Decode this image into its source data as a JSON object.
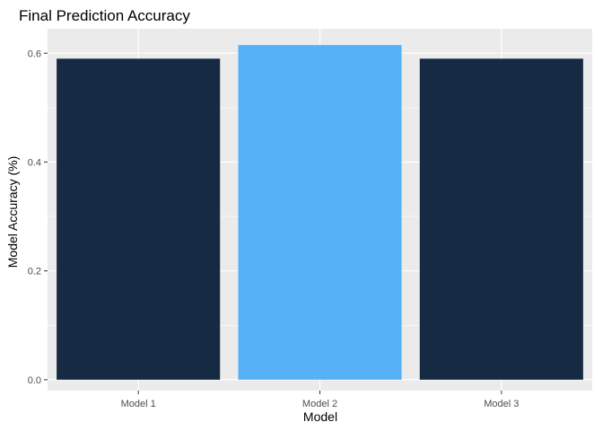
{
  "chart_data": {
    "type": "bar",
    "title": "Final Prediction Accuracy",
    "xlabel": "Model",
    "ylabel": "Model Accuracy (%)",
    "categories": [
      "Model 1",
      "Model 2",
      "Model 3"
    ],
    "values": [
      0.59,
      0.615,
      0.59
    ],
    "bar_colors": [
      "#162b43",
      "#56b1f7",
      "#162b43"
    ],
    "ylim": [
      -0.02,
      0.645
    ],
    "y_ticks": [
      0.0,
      0.2,
      0.4,
      0.6
    ],
    "y_tick_labels": [
      "0.0",
      "0.2",
      "0.4",
      "0.6"
    ],
    "grid": true,
    "legend": "none",
    "panel_background": "#ebebeb",
    "grid_color": "#ffffff"
  }
}
